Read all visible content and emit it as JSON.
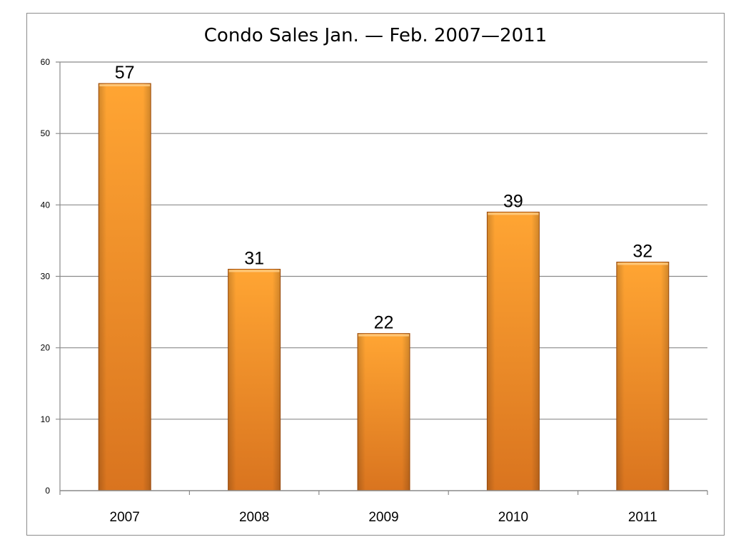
{
  "chart_data": {
    "type": "bar",
    "title": "Condo Sales Jan. — Feb. 2007—2011",
    "xlabel": "",
    "ylabel": "",
    "categories": [
      "2007",
      "2008",
      "2009",
      "2010",
      "2011"
    ],
    "values": [
      57,
      31,
      22,
      39,
      32
    ],
    "data_labels": [
      "57",
      "31",
      "22",
      "39",
      "32"
    ],
    "ylim": [
      0,
      60
    ],
    "yticks": [
      0,
      10,
      20,
      30,
      40,
      50,
      60
    ],
    "grid": true,
    "legend": "none",
    "colors": {
      "bar_light": "#ffa533",
      "bar_dark": "#d9741f",
      "bar_edge": "#a8520f",
      "grid": "#8a8a8a"
    }
  }
}
